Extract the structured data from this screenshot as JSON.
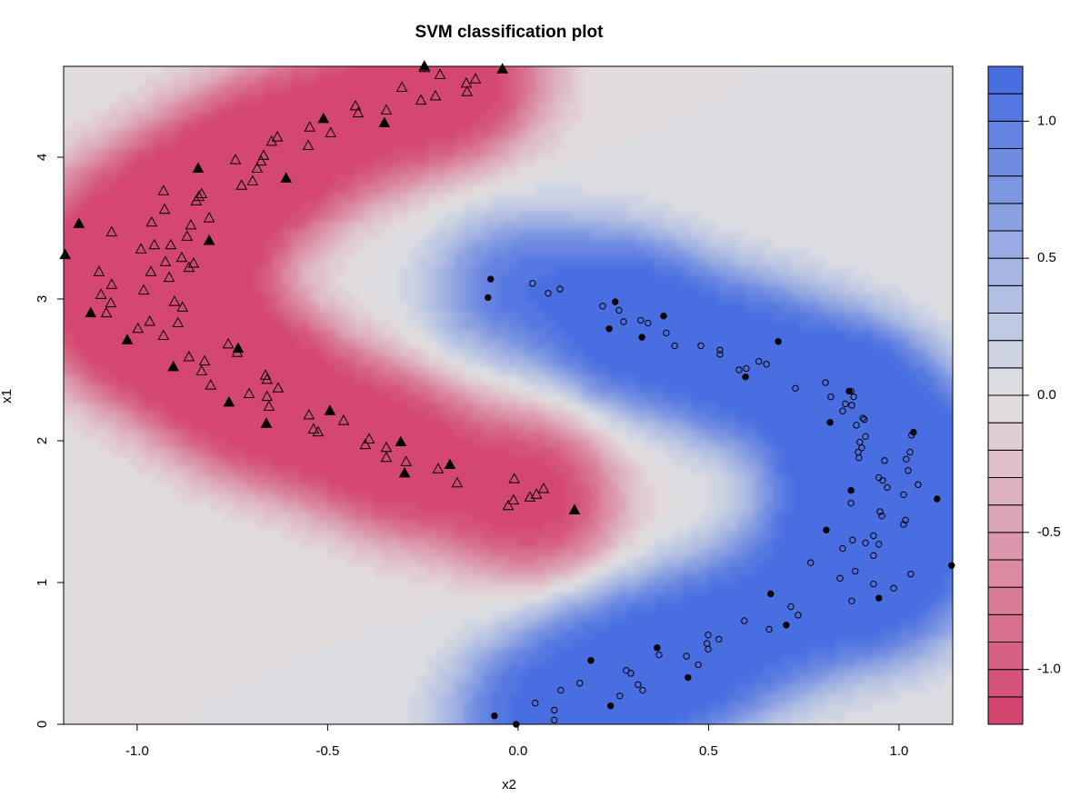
{
  "chart_data": {
    "type": "svm-contour",
    "title": "SVM classification plot",
    "x_label": "x2",
    "y_label": "x1",
    "xlim": [
      -1.193,
      1.141
    ],
    "ylim": [
      0,
      4.641
    ],
    "xticks": [
      {
        "value": -1,
        "label": "-1.0"
      },
      {
        "value": -0.5,
        "label": "-0.5"
      },
      {
        "value": 0,
        "label": "0.0"
      },
      {
        "value": 0.5,
        "label": "0.5"
      },
      {
        "value": 1,
        "label": "1.0"
      }
    ],
    "yticks": [
      0,
      1,
      2,
      3,
      4
    ],
    "zlim": [
      -1.2,
      1.2
    ],
    "zticks": [
      {
        "value": -1,
        "label": "-1.0"
      },
      {
        "value": -0.5,
        "label": "-0.5"
      },
      {
        "value": 0,
        "label": "0.0"
      },
      {
        "value": 0.5,
        "label": "0.5"
      },
      {
        "value": 1,
        "label": "1.0"
      }
    ],
    "levels": [
      -1.2,
      -1.1,
      -1.0,
      -0.9,
      -0.8,
      -0.7,
      -0.6,
      -0.5,
      -0.4,
      -0.3,
      -0.2,
      -0.1,
      0,
      0.1,
      0.2,
      0.3,
      0.4,
      0.5,
      0.6,
      0.7,
      0.8,
      0.9,
      1.0,
      1.1,
      1.2
    ],
    "colors": {
      "low": "#d33f6a",
      "mid": "#e2e2e2",
      "high": "#4169e1"
    },
    "series": [
      {
        "marker": "triangle",
        "filled": false,
        "color": "#000000",
        "x": [
          -0.246,
          -0.205,
          -0.136,
          -0.112,
          -0.134,
          -0.255,
          -0.217,
          -0.305,
          -0.427,
          -0.42,
          -0.346,
          -0.547,
          -0.492,
          -0.551,
          -0.632,
          -0.647,
          -0.668,
          -0.675,
          -0.685,
          -0.697,
          -0.726,
          -0.742,
          -0.831,
          -0.845,
          -0.838,
          -0.811,
          -0.869,
          -0.859,
          -0.852,
          -0.864,
          -0.883,
          -0.928,
          -0.912,
          -0.931,
          -0.962,
          -0.955,
          -0.99,
          -0.964,
          -0.926,
          -0.916,
          -0.902,
          -0.881,
          -0.893,
          -0.931,
          -0.967,
          -0.998,
          -0.983,
          -1.067,
          -1.067,
          -1.069,
          -1.1,
          -1.095,
          -1.081,
          -0.864,
          -0.831,
          -0.823,
          -0.807,
          -0.761,
          -0.737,
          -0.659,
          -0.663,
          -0.63,
          -0.659,
          -0.654,
          -0.706,
          -0.549,
          -0.537,
          -0.525,
          -0.458,
          -0.401,
          -0.391,
          -0.346,
          -0.346,
          -0.294,
          -0.21,
          -0.16,
          -0.01,
          -0.026,
          -0.012,
          0.031,
          0.048,
          0.067
        ],
        "values": [
          4.63,
          4.58,
          4.52,
          4.55,
          4.46,
          4.4,
          4.43,
          4.49,
          4.36,
          4.31,
          4.33,
          4.21,
          4.17,
          4.08,
          4.14,
          4.11,
          4.01,
          3.97,
          3.92,
          3.83,
          3.8,
          3.98,
          3.74,
          3.69,
          3.72,
          3.57,
          3.44,
          3.52,
          3.25,
          3.22,
          3.29,
          3.63,
          3.38,
          3.76,
          3.54,
          3.38,
          3.35,
          3.19,
          3.26,
          3.15,
          2.98,
          2.94,
          2.83,
          2.74,
          2.84,
          2.79,
          3.06,
          3.47,
          3.1,
          2.97,
          3.19,
          3.03,
          2.9,
          2.59,
          2.49,
          2.56,
          2.39,
          2.68,
          2.62,
          2.43,
          2.46,
          2.37,
          2.31,
          2.24,
          2.33,
          2.18,
          2.08,
          2.06,
          2.14,
          1.97,
          2.01,
          1.95,
          1.88,
          1.85,
          1.8,
          1.7,
          1.73,
          1.54,
          1.58,
          1.6,
          1.62,
          1.66
        ]
      },
      {
        "marker": "triangle",
        "filled": true,
        "color": "#000000",
        "x": [
          -1.189,
          -1.153,
          -1.122,
          -1.026,
          -0.905,
          -0.811,
          -0.84,
          -0.609,
          -0.351,
          -0.246,
          -0.041,
          -0.735,
          -0.759,
          -0.661,
          -0.494,
          -0.511,
          -0.308,
          -0.298,
          -0.179,
          0.148
        ],
        "values": [
          3.31,
          3.53,
          2.9,
          2.71,
          2.52,
          3.41,
          3.92,
          3.85,
          4.24,
          4.64,
          4.62,
          2.65,
          2.27,
          2.12,
          2.21,
          4.27,
          1.99,
          1.77,
          1.83,
          1.51
        ]
      },
      {
        "marker": "circle",
        "filled": false,
        "color": "#000000",
        "x": [
          0.038,
          0.079,
          0.11,
          0.222,
          0.265,
          0.277,
          0.341,
          0.322,
          0.389,
          0.411,
          0.48,
          0.53,
          0.53,
          0.58,
          0.599,
          0.632,
          0.652,
          0.728,
          0.807,
          0.821,
          0.852,
          0.859,
          0.876,
          0.881,
          0.874,
          0.905,
          0.888,
          0.897,
          0.902,
          0.893,
          0.895,
          0.912,
          0.909,
          0.947,
          0.957,
          0.962,
          0.969,
          1.019,
          1.024,
          1.029,
          1.033,
          1.05,
          1.012,
          0.95,
          0.955,
          1.017,
          1.012,
          0.874,
          0.933,
          0.912,
          0.947,
          0.878,
          0.852,
          0.885,
          0.933,
          0.768,
          0.845,
          0.986,
          0.933,
          0.876,
          1.031,
          0.716,
          0.735,
          0.659,
          0.594,
          0.499,
          0.496,
          0.499,
          0.527,
          0.442,
          0.473,
          0.37,
          0.284,
          0.296,
          0.315,
          0.327,
          0.267,
          0.162,
          0.112,
          0.045,
          0.095,
          0.095
        ],
        "values": [
          3.11,
          3.04,
          3.07,
          2.95,
          2.92,
          2.84,
          2.83,
          2.85,
          2.76,
          2.67,
          2.67,
          2.64,
          2.61,
          2.5,
          2.51,
          2.56,
          2.54,
          2.37,
          2.41,
          2.31,
          2.21,
          2.26,
          2.25,
          2.31,
          2.35,
          2.16,
          2.11,
          1.99,
          1.95,
          1.92,
          1.88,
          2.03,
          2.15,
          1.74,
          1.72,
          1.86,
          1.67,
          1.87,
          1.79,
          1.92,
          2.04,
          1.69,
          1.62,
          1.5,
          1.47,
          1.44,
          1.41,
          1.56,
          1.33,
          1.28,
          1.27,
          1.3,
          1.24,
          1.08,
          1.19,
          1.14,
          1.03,
          0.96,
          0.99,
          0.87,
          1.06,
          0.83,
          0.77,
          0.67,
          0.73,
          0.63,
          0.57,
          0.53,
          0.6,
          0.48,
          0.42,
          0.49,
          0.38,
          0.36,
          0.28,
          0.24,
          0.2,
          0.29,
          0.24,
          0.15,
          0.1,
          0.03
        ]
      },
      {
        "marker": "circle",
        "filled": true,
        "color": "#000000",
        "x": [
          -0.072,
          -0.079,
          0.255,
          0.239,
          0.325,
          0.382,
          0.597,
          0.683,
          0.869,
          0.819,
          1.038,
          0.874,
          1.1,
          0.809,
          1.138,
          0.947,
          0.663,
          0.704,
          0.365,
          0.191,
          0.446,
          0.243,
          -0.062,
          -0.005
        ],
        "values": [
          3.14,
          3.01,
          2.98,
          2.79,
          2.73,
          2.88,
          2.45,
          2.7,
          2.35,
          2.13,
          2.06,
          1.65,
          1.59,
          1.37,
          1.12,
          0.89,
          0.92,
          0.7,
          0.54,
          0.45,
          0.33,
          0.13,
          0.06,
          0
        ]
      }
    ]
  }
}
